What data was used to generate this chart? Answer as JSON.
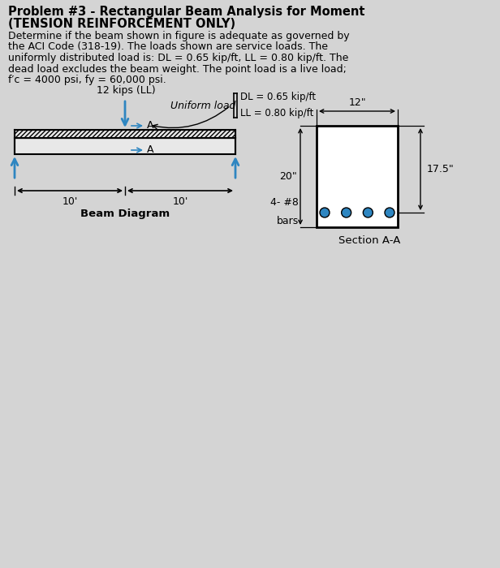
{
  "bg_color": "#d4d4d4",
  "title_line1": "Problem #3 - Rectangular Beam Analysis for Moment",
  "title_line2": "(TENSION REINFORCEMENT ONLY)",
  "body_lines": [
    "Determine if the beam shown in figure is adequate as governed by",
    "the ACI Code (318-19). The loads shown are service loads. The",
    "uniformly distributed load is: DL = 0.65 kip/ft, LL = 0.80 kip/ft. The",
    "dead load excludes the beam weight. The point load is a live load;",
    "f′c = 4000 psi, fy = 60,000 psi."
  ],
  "point_load_label": "12 kips (LL)",
  "uniform_load_label": "Uniform load",
  "dl_label": "DL = 0.65 kip/ft",
  "ll_label": "LL = 0.80 kip/ft",
  "span_left": "10'",
  "span_right": "10'",
  "beam_diagram_label": "Beam Diagram",
  "section_label": "Section A-A",
  "width_label": "12\"",
  "height_label": "20\"",
  "depth_label": "17.5\"",
  "bars_label_1": "4- #8",
  "bars_label_2": "bars",
  "bar_color": "#2e86c1",
  "arrow_color": "#2e86c1",
  "black": "#000000",
  "white": "#ffffff",
  "beam_fill": "#e8e8e8"
}
